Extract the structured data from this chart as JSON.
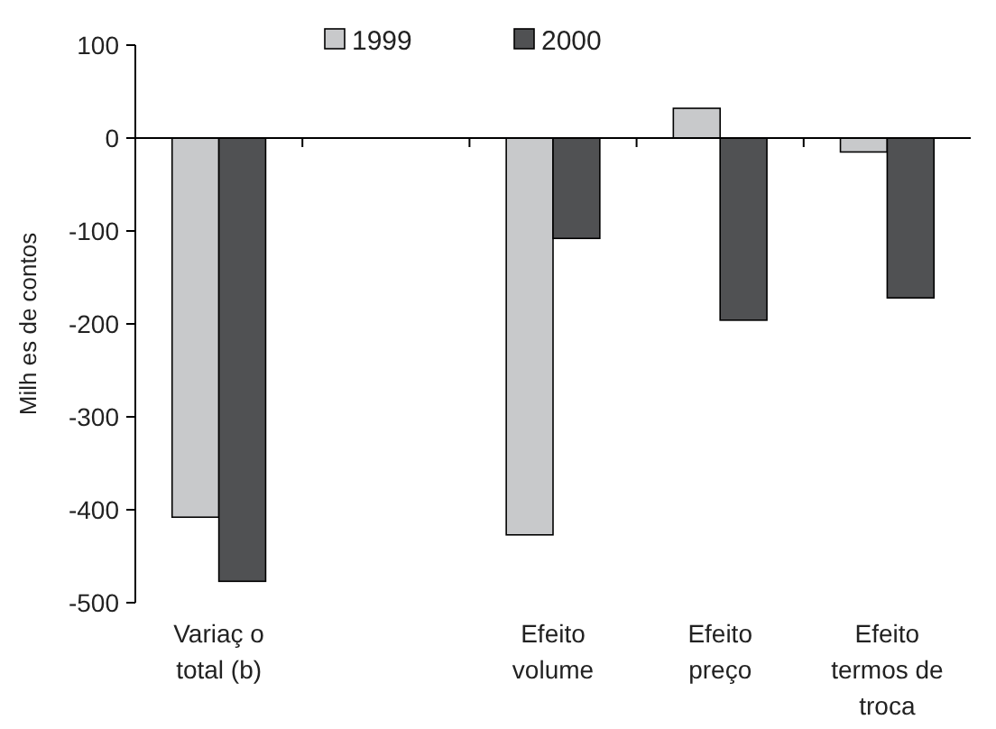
{
  "chart_data": {
    "type": "bar",
    "ylabel": "Milh es de contos",
    "categories": [
      "Variaç o total (b)",
      null,
      "Efeito volume",
      "Efeito preço",
      "Efeito termos de troca"
    ],
    "series": [
      {
        "name": "1999",
        "color": "#c8c9cb",
        "values": [
          -408,
          null,
          -427,
          32,
          -15
        ]
      },
      {
        "name": "2000",
        "color": "#505153",
        "values": [
          -477,
          null,
          -108,
          -196,
          -172
        ]
      }
    ],
    "ylim": [
      -500,
      100
    ],
    "yticks": [
      -500,
      -400,
      -300,
      -200,
      -100,
      0,
      100
    ],
    "legend": "top"
  }
}
